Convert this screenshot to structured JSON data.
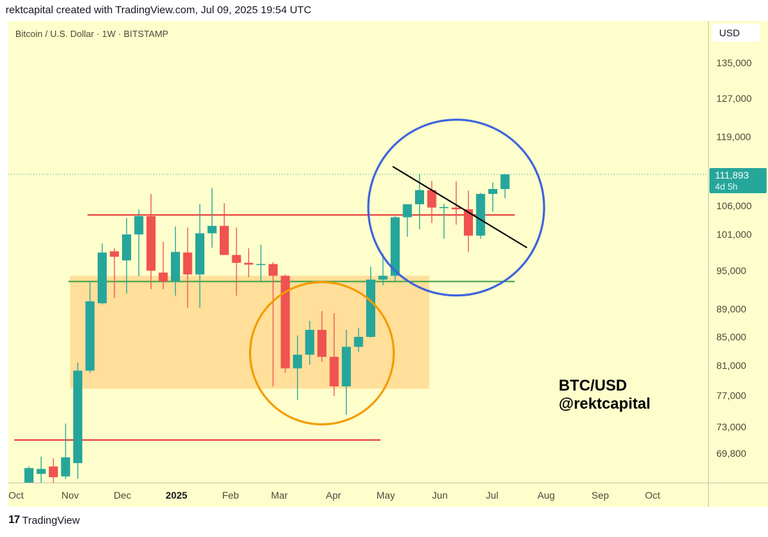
{
  "header": {
    "credit": "rektcapital created with TradingView.com, Jul 09, 2025 19:54 UTC"
  },
  "symbol_line": "Bitcoin / U.S. Dollar · 1W · BITSTAMP",
  "currency_button": "USD",
  "last_price": {
    "value": "111,893",
    "countdown": "4d 5h"
  },
  "watermark": {
    "line1": "BTC/USD",
    "line2": "@rektcapital"
  },
  "logo": {
    "text": "TradingView",
    "icon": "tradingview-logo-icon"
  },
  "colors": {
    "up": "#26a69a",
    "down": "#ef5350",
    "background": "#fefecc",
    "zone": "#ffd98f",
    "resistance": "#e53935",
    "support": "#43a047",
    "circle_orange": "#f59b00",
    "circle_blue": "#3d63dd"
  },
  "chart_data": {
    "type": "candlestick",
    "interval": "1W",
    "y_ticks": [
      "135,000",
      "127,000",
      "119,000",
      "106,000",
      "101,000",
      "95,000",
      "89,000",
      "85,000",
      "81,000",
      "77,000",
      "73,000",
      "69,800"
    ],
    "x_ticks": [
      {
        "label": "Oct",
        "date": "2024-10-01"
      },
      {
        "label": "Nov",
        "date": "2024-11-01"
      },
      {
        "label": "Dec",
        "date": "2024-12-01"
      },
      {
        "label": "2025",
        "date": "2025-01-01",
        "bold": true
      },
      {
        "label": "Feb",
        "date": "2025-02-01"
      },
      {
        "label": "Mar",
        "date": "2025-03-01"
      },
      {
        "label": "Apr",
        "date": "2025-04-01"
      },
      {
        "label": "May",
        "date": "2025-05-01"
      },
      {
        "label": "Jun",
        "date": "2025-06-01"
      },
      {
        "label": "Jul",
        "date": "2025-07-01"
      },
      {
        "label": "Aug",
        "date": "2025-08-01"
      },
      {
        "label": "Sep",
        "date": "2025-09-01"
      },
      {
        "label": "Oct",
        "date": "2025-10-01"
      }
    ],
    "candles": [
      {
        "date": "2024-10-07",
        "o": 62800,
        "h": 68300,
        "l": 62000,
        "c": 68100
      },
      {
        "date": "2024-10-14",
        "o": 67400,
        "h": 69500,
        "l": 65800,
        "c": 68000
      },
      {
        "date": "2024-10-21",
        "o": 68300,
        "h": 69300,
        "l": 65200,
        "c": 67000
      },
      {
        "date": "2024-10-28",
        "o": 67100,
        "h": 73500,
        "l": 66800,
        "c": 69400
      },
      {
        "date": "2024-11-04",
        "o": 68700,
        "h": 81500,
        "l": 66800,
        "c": 80400
      },
      {
        "date": "2024-11-11",
        "o": 80400,
        "h": 93400,
        "l": 80100,
        "c": 90300
      },
      {
        "date": "2024-11-18",
        "o": 90000,
        "h": 99600,
        "l": 89800,
        "c": 98100
      },
      {
        "date": "2024-11-25",
        "o": 98300,
        "h": 98800,
        "l": 90800,
        "c": 97400
      },
      {
        "date": "2024-12-02",
        "o": 96800,
        "h": 104000,
        "l": 91500,
        "c": 101100
      },
      {
        "date": "2024-12-09",
        "o": 101100,
        "h": 105500,
        "l": 94200,
        "c": 104300
      },
      {
        "date": "2024-12-16",
        "o": 104300,
        "h": 108300,
        "l": 92200,
        "c": 95100
      },
      {
        "date": "2024-12-23",
        "o": 94800,
        "h": 99900,
        "l": 92200,
        "c": 93400
      },
      {
        "date": "2024-12-30",
        "o": 93400,
        "h": 102500,
        "l": 91200,
        "c": 98200
      },
      {
        "date": "2025-01-06",
        "o": 98100,
        "h": 102300,
        "l": 89300,
        "c": 94500
      },
      {
        "date": "2025-01-13",
        "o": 94500,
        "h": 106400,
        "l": 89300,
        "c": 101300
      },
      {
        "date": "2025-01-20",
        "o": 101300,
        "h": 109400,
        "l": 98900,
        "c": 102600
      },
      {
        "date": "2025-01-27",
        "o": 102600,
        "h": 106600,
        "l": 97800,
        "c": 97700
      },
      {
        "date": "2025-02-03",
        "o": 97700,
        "h": 102300,
        "l": 91200,
        "c": 96400
      },
      {
        "date": "2025-02-10",
        "o": 96400,
        "h": 98800,
        "l": 94100,
        "c": 96100
      },
      {
        "date": "2025-02-17",
        "o": 96100,
        "h": 99400,
        "l": 93400,
        "c": 96200
      },
      {
        "date": "2025-02-24",
        "o": 96200,
        "h": 96500,
        "l": 78300,
        "c": 94300
      },
      {
        "date": "2025-03-03",
        "o": 94300,
        "h": 94500,
        "l": 80100,
        "c": 80700
      },
      {
        "date": "2025-03-10",
        "o": 80700,
        "h": 85300,
        "l": 76500,
        "c": 82600
      },
      {
        "date": "2025-03-17",
        "o": 82600,
        "h": 87400,
        "l": 81200,
        "c": 86100
      },
      {
        "date": "2025-03-24",
        "o": 86100,
        "h": 88800,
        "l": 81600,
        "c": 82300
      },
      {
        "date": "2025-03-31",
        "o": 82300,
        "h": 88500,
        "l": 77000,
        "c": 78300
      },
      {
        "date": "2025-04-07",
        "o": 78300,
        "h": 86100,
        "l": 74600,
        "c": 83700
      },
      {
        "date": "2025-04-14",
        "o": 83700,
        "h": 86400,
        "l": 83000,
        "c": 85100
      },
      {
        "date": "2025-04-21",
        "o": 85100,
        "h": 95800,
        "l": 85000,
        "c": 93700
      },
      {
        "date": "2025-04-28",
        "o": 93700,
        "h": 97900,
        "l": 92800,
        "c": 94300
      },
      {
        "date": "2025-05-05",
        "o": 94300,
        "h": 104300,
        "l": 93400,
        "c": 104100
      },
      {
        "date": "2025-05-12",
        "o": 104100,
        "h": 105900,
        "l": 100700,
        "c": 106400
      },
      {
        "date": "2025-05-19",
        "o": 106400,
        "h": 111900,
        "l": 102000,
        "c": 109000
      },
      {
        "date": "2025-05-26",
        "o": 109000,
        "h": 110700,
        "l": 103100,
        "c": 105800
      },
      {
        "date": "2025-06-02",
        "o": 105800,
        "h": 106500,
        "l": 100400,
        "c": 105900
      },
      {
        "date": "2025-06-09",
        "o": 105800,
        "h": 110600,
        "l": 102800,
        "c": 105500
      },
      {
        "date": "2025-06-16",
        "o": 105500,
        "h": 108900,
        "l": 98200,
        "c": 100900
      },
      {
        "date": "2025-06-23",
        "o": 100900,
        "h": 108500,
        "l": 100400,
        "c": 108300
      },
      {
        "date": "2025-06-30",
        "o": 108300,
        "h": 110400,
        "l": 105100,
        "c": 109200
      },
      {
        "date": "2025-07-07",
        "o": 109200,
        "h": 112000,
        "l": 107500,
        "c": 111893
      }
    ],
    "annotations": [
      {
        "kind": "hline",
        "name": "resistance-line-upper",
        "price": 104500,
        "from": "2024-11-11",
        "to": "2025-07-14",
        "color": "#e53935"
      },
      {
        "kind": "hline",
        "name": "support-line",
        "price": 93400,
        "from": "2024-10-31",
        "to": "2025-07-14",
        "color": "#43a047"
      },
      {
        "kind": "hline",
        "name": "resistance-line-lower",
        "price": 71500,
        "from": "2024-09-30",
        "to": "2025-04-28",
        "color": "#e53935"
      },
      {
        "kind": "zone",
        "name": "accumulation-zone",
        "from": "2024-11-01",
        "to": "2025-05-26",
        "top": 94300,
        "bottom": 78000,
        "color": "#ffd98f"
      },
      {
        "kind": "ellipse",
        "name": "orange-circle",
        "center": "2025-03-24",
        "price": 82800,
        "color": "#f59b00"
      },
      {
        "kind": "ellipse",
        "name": "blue-circle",
        "center": "2025-06-09",
        "price": 105800,
        "color": "#3d63dd"
      },
      {
        "kind": "trendline",
        "name": "downtrend-line",
        "from": {
          "date": "2025-05-05",
          "price": 113400
        },
        "to": {
          "date": "2025-07-21",
          "price": 98900
        },
        "color": "#000000"
      }
    ],
    "last_price_line": 111893,
    "grid": false
  }
}
